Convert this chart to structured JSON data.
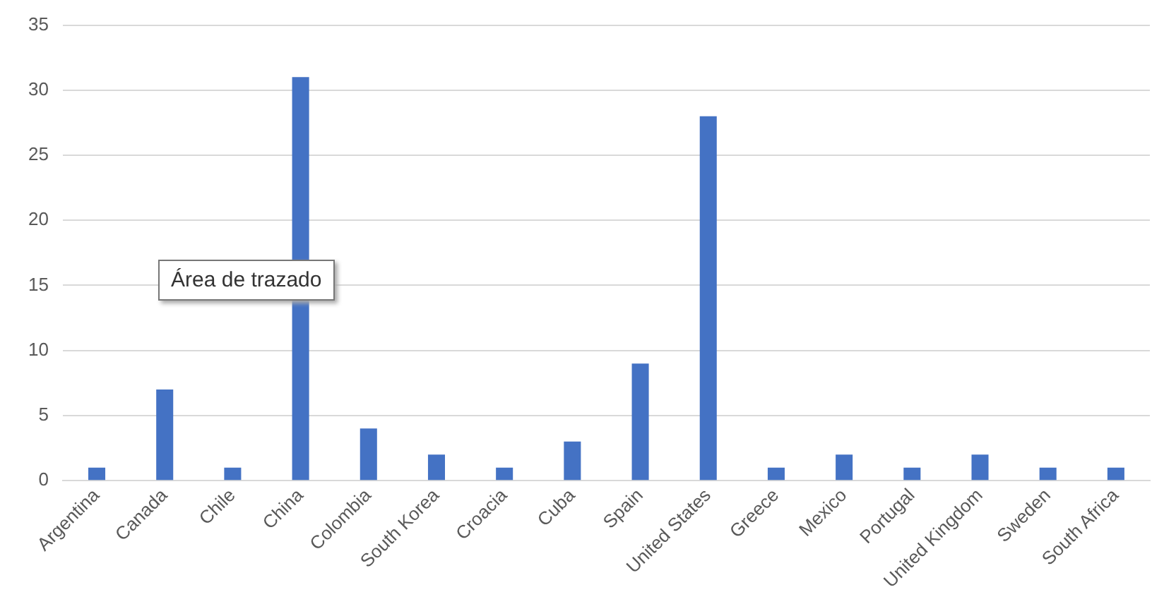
{
  "chart_data": {
    "type": "bar",
    "categories": [
      "Argentina",
      "Canada",
      "Chile",
      "China",
      "Colombia",
      "South Korea",
      "Croacia",
      "Cuba",
      "Spain",
      "United States",
      "Greece",
      "Mexico",
      "Portugal",
      "United Kingdom",
      "Sweden",
      "South Africa"
    ],
    "values": [
      1,
      7,
      1,
      31,
      4,
      2,
      1,
      3,
      9,
      28,
      1,
      2,
      1,
      2,
      1,
      1
    ],
    "color": "#4472c4",
    "ylim": [
      0,
      35
    ],
    "yticks": [
      0,
      5,
      10,
      15,
      20,
      25,
      30,
      35
    ],
    "grid": "y",
    "legend": false,
    "annotations": [
      "Área de trazado"
    ]
  }
}
